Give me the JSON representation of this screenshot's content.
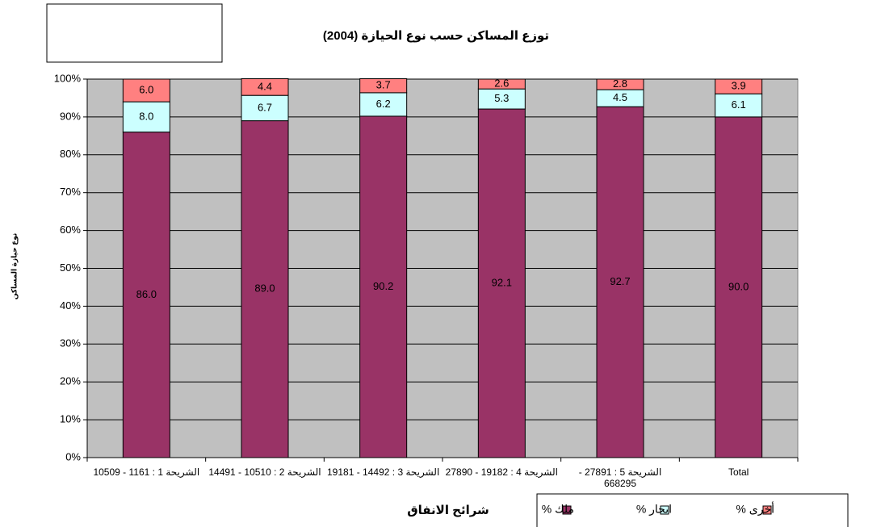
{
  "chart_data": {
    "type": "stacked_bar",
    "title": "توزع المساكن حسب نوع الحيازة (2004)",
    "x_label": "شرائح الانفاق",
    "y_label": "نوع حيازة المساكن",
    "categories": [
      "الشريحة 1 : 1161 - 10509",
      "الشريحة 2 : 10510 - 14491",
      "الشريحة 3 : 14492 - 19181",
      "الشريحة 4 : 19182 - 27890",
      "الشريحة 5 : 27891 - 668295",
      "Total"
    ],
    "series": [
      {
        "name": "ملك %",
        "color": "#993366",
        "values": [
          86.0,
          89.0,
          90.2,
          92.1,
          92.7,
          90.0
        ],
        "value_labels": [
          "86.0",
          "89.0",
          "90.2",
          "92.1",
          "92.7",
          "90.0"
        ]
      },
      {
        "name": "ايجار %",
        "color": "#ccffff",
        "values": [
          8.0,
          6.7,
          6.2,
          5.3,
          4.5,
          6.1
        ],
        "value_labels": [
          "8.0",
          "6.7",
          "6.2",
          "5.3",
          "4.5",
          "6.1"
        ]
      },
      {
        "name": "أخرى %",
        "color": "#ff8080",
        "values": [
          6.0,
          4.4,
          3.7,
          2.6,
          2.8,
          3.9
        ],
        "value_labels": [
          "6.0",
          "4.4",
          "3.7",
          "2.6",
          "2.8",
          "3.9"
        ]
      }
    ],
    "ylim": [
      0,
      100
    ],
    "yticks": [
      {
        "value": 0,
        "label": "0%"
      },
      {
        "value": 10,
        "label": "10%"
      },
      {
        "value": 20,
        "label": "20%"
      },
      {
        "value": 30,
        "label": "30%"
      },
      {
        "value": 40,
        "label": "40%"
      },
      {
        "value": 50,
        "label": "50%"
      },
      {
        "value": 60,
        "label": "60%"
      },
      {
        "value": 70,
        "label": "70%"
      },
      {
        "value": 80,
        "label": "80%"
      },
      {
        "value": 90,
        "label": "90%"
      },
      {
        "value": 100,
        "label": "100%"
      }
    ],
    "grid": true,
    "legend": "bottom-right"
  }
}
